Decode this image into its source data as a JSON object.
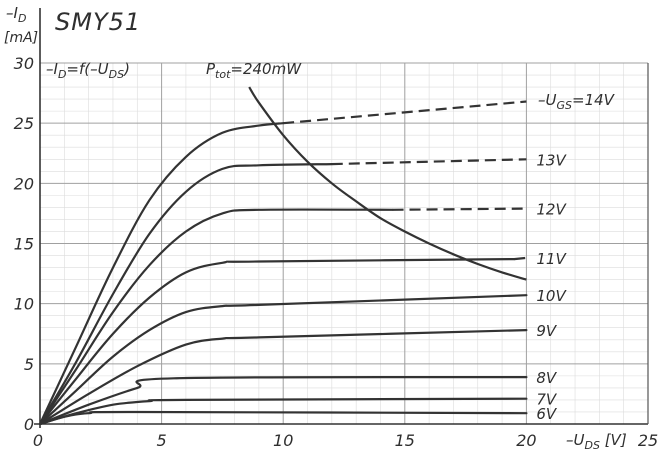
{
  "chart_data": {
    "type": "line",
    "title": "SMY51",
    "formula": "-I_D = f(-U_DS)",
    "ylabel": "-I_D",
    "yunit": "[mA]",
    "xlabel": "-U_DS [V]",
    "xlim": [
      0,
      25
    ],
    "ylim": [
      0,
      30
    ],
    "xticks": [
      0,
      5,
      10,
      15,
      20,
      25
    ],
    "yticks": [
      0,
      5,
      10,
      15,
      20,
      25,
      30
    ],
    "grid": true,
    "series": [
      {
        "name": "6V",
        "label": "6V",
        "solid": [
          [
            0,
            0
          ],
          [
            1,
            0.6
          ],
          [
            2,
            0.9
          ],
          [
            4,
            1.0
          ],
          [
            20,
            0.9
          ]
        ],
        "dashed": []
      },
      {
        "name": "7V",
        "label": "7V",
        "solid": [
          [
            0,
            0
          ],
          [
            1.5,
            0.9
          ],
          [
            3,
            1.6
          ],
          [
            4.5,
            1.9
          ],
          [
            6,
            2.0
          ],
          [
            20,
            2.1
          ]
        ],
        "dashed": []
      },
      {
        "name": "8V",
        "label": "8V",
        "solid": [
          [
            0,
            0
          ],
          [
            2,
            1.6
          ],
          [
            4,
            3.0
          ],
          [
            5.5,
            3.8
          ],
          [
            20,
            3.9
          ]
        ],
        "dashed": []
      },
      {
        "name": "9V",
        "label": "9V",
        "solid": [
          [
            0,
            0
          ],
          [
            2,
            2.5
          ],
          [
            4,
            4.8
          ],
          [
            6,
            6.6
          ],
          [
            7.5,
            7.1
          ],
          [
            9,
            7.2
          ],
          [
            20,
            7.8
          ]
        ],
        "dashed": []
      },
      {
        "name": "10V",
        "label": "10V",
        "solid": [
          [
            0,
            0
          ],
          [
            1.5,
            2.8
          ],
          [
            3,
            5.6
          ],
          [
            4.5,
            7.8
          ],
          [
            6,
            9.3
          ],
          [
            7.5,
            9.8
          ],
          [
            9,
            9.9
          ],
          [
            20,
            10.7
          ]
        ],
        "dashed": []
      },
      {
        "name": "11V",
        "label": "11V",
        "solid": [
          [
            0,
            0
          ],
          [
            1.5,
            3.8
          ],
          [
            3,
            7.5
          ],
          [
            4.5,
            10.5
          ],
          [
            6,
            12.6
          ],
          [
            7.5,
            13.4
          ],
          [
            9,
            13.5
          ],
          [
            19.5,
            13.7
          ]
        ],
        "dashed": [
          [
            19.5,
            13.7
          ],
          [
            20,
            13.8
          ]
        ]
      },
      {
        "name": "12V",
        "label": "12V",
        "solid": [
          [
            0,
            0
          ],
          [
            1.5,
            4.6
          ],
          [
            3,
            9.3
          ],
          [
            4.5,
            13.2
          ],
          [
            6,
            16.0
          ],
          [
            7.5,
            17.5
          ],
          [
            9,
            17.8
          ],
          [
            14.5,
            17.8
          ]
        ],
        "dashed": [
          [
            14.5,
            17.8
          ],
          [
            20,
            17.9
          ]
        ]
      },
      {
        "name": "13V",
        "label": "13V",
        "solid": [
          [
            0,
            0
          ],
          [
            1.5,
            5.2
          ],
          [
            3,
            10.8
          ],
          [
            4.5,
            15.8
          ],
          [
            6,
            19.3
          ],
          [
            7.5,
            21.2
          ],
          [
            9,
            21.5
          ],
          [
            12,
            21.6
          ]
        ],
        "dashed": [
          [
            12,
            21.6
          ],
          [
            20,
            22.0
          ]
        ]
      },
      {
        "name": "14V",
        "label": "-U_GS=14V",
        "solid": [
          [
            0,
            0
          ],
          [
            1.5,
            6.5
          ],
          [
            3,
            13.0
          ],
          [
            4.5,
            18.6
          ],
          [
            6,
            22.2
          ],
          [
            7.5,
            24.2
          ],
          [
            9,
            24.8
          ],
          [
            10,
            25.0
          ]
        ],
        "dashed": [
          [
            10,
            25.0
          ],
          [
            20,
            26.8
          ]
        ]
      }
    ],
    "power_curve": {
      "label": "P_tot=240mW",
      "points": [
        [
          8.6,
          28.0
        ],
        [
          9,
          26.7
        ],
        [
          10,
          24.0
        ],
        [
          11,
          21.8
        ],
        [
          12,
          20.0
        ],
        [
          13,
          18.5
        ],
        [
          14,
          17.1
        ],
        [
          15,
          16.0
        ],
        [
          16,
          15.0
        ],
        [
          17,
          14.1
        ],
        [
          18,
          13.3
        ],
        [
          19,
          12.6
        ],
        [
          20,
          12.0
        ]
      ]
    }
  }
}
